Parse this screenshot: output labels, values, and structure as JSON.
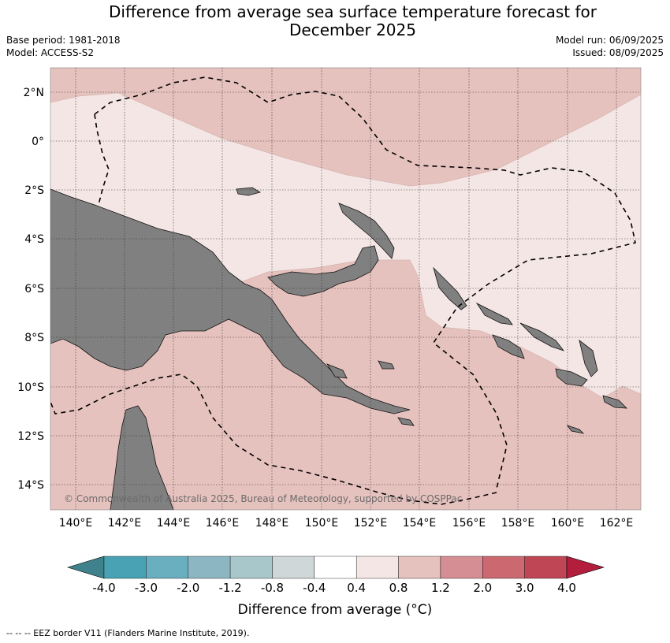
{
  "title_line1": "Difference from average sea surface temperature forecast for",
  "title_line2": "December 2025",
  "base_period": "Base period: 1981-2018",
  "model": "Model: ACCESS-S2",
  "model_run": "Model run: 06/09/2025",
  "issued": "Issued: 08/09/2025",
  "copyright": "© Commonwealth of Australia 2025, Bureau of Meteorology, supported by COSPPac",
  "lat_labels": [
    "2°N",
    "0°",
    "2°S",
    "4°S",
    "6°S",
    "8°S",
    "10°S",
    "12°S",
    "14°S"
  ],
  "lon_labels": [
    "140°E",
    "142°E",
    "144°E",
    "146°E",
    "148°E",
    "150°E",
    "152°E",
    "154°E",
    "156°E",
    "158°E",
    "160°E",
    "162°E"
  ],
  "colorbar": {
    "ticks": [
      "-4.0",
      "-3.0",
      "-2.0",
      "-1.2",
      "-0.8",
      "-0.4",
      "0.4",
      "0.8",
      "1.2",
      "2.0",
      "3.0",
      "4.0"
    ],
    "colors": [
      "#3f828c",
      "#49a2b3",
      "#6aafbf",
      "#8cb7c2",
      "#a8c7ca",
      "#d0d7d8",
      "#ffffff",
      "#f4e6e4",
      "#e6c2be",
      "#d68e95",
      "#cb6870",
      "#bf4755",
      "#b21e3c"
    ],
    "label": "Difference from average (°C)"
  },
  "legend_note": "--  --  -- EEZ border V11 (Flanders Marine Institute, 2019)."
}
